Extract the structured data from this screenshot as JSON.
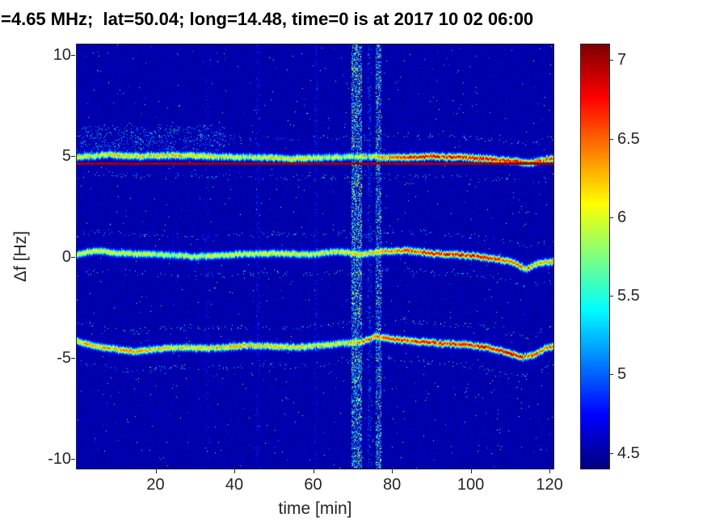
{
  "chart_data": {
    "type": "heatmap",
    "title": "=4.65 MHz;  lat=50.04; long=14.48, time=0 is at 2017 10 02 06:00",
    "xlabel": "time [min]",
    "ylabel": "Δf [Hz]",
    "xlim": [
      0,
      121
    ],
    "ylim": [
      -10.5,
      10.5
    ],
    "xticks": [
      20,
      40,
      60,
      80,
      100,
      120
    ],
    "yticks": [
      10,
      5,
      0,
      -5,
      -10
    ],
    "colormap": "jet",
    "color_axis": [
      4.4,
      7.1
    ],
    "colorbar_ticks": [
      7,
      6.5,
      6,
      5.5,
      5,
      4.5
    ],
    "background_level": 4.45,
    "trace_sigma_hz": 0.11,
    "carrier_line": {
      "freq": 4.6,
      "level": 7.0,
      "halfwidth": 0.055
    },
    "traces": [
      {
        "name": "upper-doppler-trace",
        "center_hz": [
          [
            0,
            4.9
          ],
          [
            8,
            5.05
          ],
          [
            15,
            4.95
          ],
          [
            25,
            5.0
          ],
          [
            35,
            4.95
          ],
          [
            45,
            4.9
          ],
          [
            55,
            4.85
          ],
          [
            65,
            4.9
          ],
          [
            72,
            4.95
          ],
          [
            80,
            4.9
          ],
          [
            90,
            4.95
          ],
          [
            100,
            4.9
          ],
          [
            106,
            4.8
          ],
          [
            112,
            4.7
          ],
          [
            115,
            4.6
          ],
          [
            118,
            4.75
          ],
          [
            121,
            4.85
          ]
        ],
        "peak_level": [
          [
            0,
            6.15
          ],
          [
            20,
            6.3
          ],
          [
            40,
            6.1
          ],
          [
            55,
            6.2
          ],
          [
            70,
            6.0
          ],
          [
            78,
            6.5
          ],
          [
            88,
            6.85
          ],
          [
            100,
            6.8
          ],
          [
            112,
            6.9
          ],
          [
            121,
            6.6
          ]
        ],
        "spread": {
          "t_range": [
            0,
            38
          ],
          "f_offset": [
            0.05,
            1.5
          ],
          "prob": 0.1
        }
      },
      {
        "name": "middle-doppler-trace",
        "center_hz": [
          [
            0,
            0.1
          ],
          [
            5,
            0.3
          ],
          [
            10,
            0.15
          ],
          [
            20,
            0.1
          ],
          [
            30,
            0.0
          ],
          [
            40,
            0.1
          ],
          [
            50,
            0.15
          ],
          [
            60,
            0.1
          ],
          [
            66,
            0.25
          ],
          [
            72,
            0.1
          ],
          [
            78,
            0.25
          ],
          [
            84,
            0.3
          ],
          [
            90,
            0.15
          ],
          [
            96,
            0.1
          ],
          [
            102,
            0.0
          ],
          [
            107,
            -0.15
          ],
          [
            111,
            -0.3
          ],
          [
            114,
            -0.65
          ],
          [
            117,
            -0.35
          ],
          [
            121,
            -0.25
          ]
        ],
        "peak_level": [
          [
            0,
            6.1
          ],
          [
            30,
            6.0
          ],
          [
            60,
            6.15
          ],
          [
            75,
            6.3
          ],
          [
            85,
            6.7
          ],
          [
            95,
            6.85
          ],
          [
            105,
            6.8
          ],
          [
            112,
            6.5
          ],
          [
            121,
            6.3
          ]
        ]
      },
      {
        "name": "lower-doppler-trace",
        "center_hz": [
          [
            0,
            -4.2
          ],
          [
            5,
            -4.45
          ],
          [
            10,
            -4.6
          ],
          [
            15,
            -4.7
          ],
          [
            20,
            -4.6
          ],
          [
            26,
            -4.5
          ],
          [
            32,
            -4.55
          ],
          [
            38,
            -4.5
          ],
          [
            44,
            -4.4
          ],
          [
            50,
            -4.45
          ],
          [
            56,
            -4.5
          ],
          [
            62,
            -4.4
          ],
          [
            68,
            -4.3
          ],
          [
            72,
            -4.25
          ],
          [
            76,
            -3.95
          ],
          [
            80,
            -4.1
          ],
          [
            86,
            -4.2
          ],
          [
            92,
            -4.3
          ],
          [
            98,
            -4.35
          ],
          [
            104,
            -4.5
          ],
          [
            109,
            -4.75
          ],
          [
            113,
            -5.0
          ],
          [
            116,
            -4.9
          ],
          [
            119,
            -4.55
          ],
          [
            121,
            -4.45
          ]
        ],
        "peak_level": [
          [
            0,
            6.3
          ],
          [
            12,
            6.45
          ],
          [
            25,
            6.2
          ],
          [
            40,
            6.35
          ],
          [
            55,
            6.25
          ],
          [
            68,
            6.2
          ],
          [
            76,
            6.6
          ],
          [
            88,
            6.8
          ],
          [
            100,
            6.75
          ],
          [
            110,
            6.9
          ],
          [
            116,
            6.7
          ],
          [
            121,
            6.55
          ]
        ]
      }
    ],
    "interference_bands": [
      {
        "t_range": [
          69.8,
          72.3
        ],
        "strength": 1.6,
        "density": 0.55
      },
      {
        "t_range": [
          75.8,
          77.4
        ],
        "strength": 1.5,
        "density": 0.5
      },
      {
        "t_range": [
          73.8,
          74.8
        ],
        "strength": 0.7,
        "density": 0.28
      },
      {
        "t_range": [
          45.6,
          46.6
        ],
        "strength": 0.5,
        "density": 0.22
      },
      {
        "t_range": [
          60.2,
          61.2
        ],
        "strength": 0.5,
        "density": 0.22
      },
      {
        "t_range": [
          32.6,
          33.6
        ],
        "strength": 0.4,
        "density": 0.18
      }
    ],
    "noise": {
      "speckle_prob": 0.003,
      "speckle_amp": 1.3,
      "base_jitter": 0.14
    }
  },
  "colors": {
    "figure_background": "#ffffff",
    "axis_frame": "#262626",
    "tick_label": "#262626",
    "title_text": "#000000"
  }
}
